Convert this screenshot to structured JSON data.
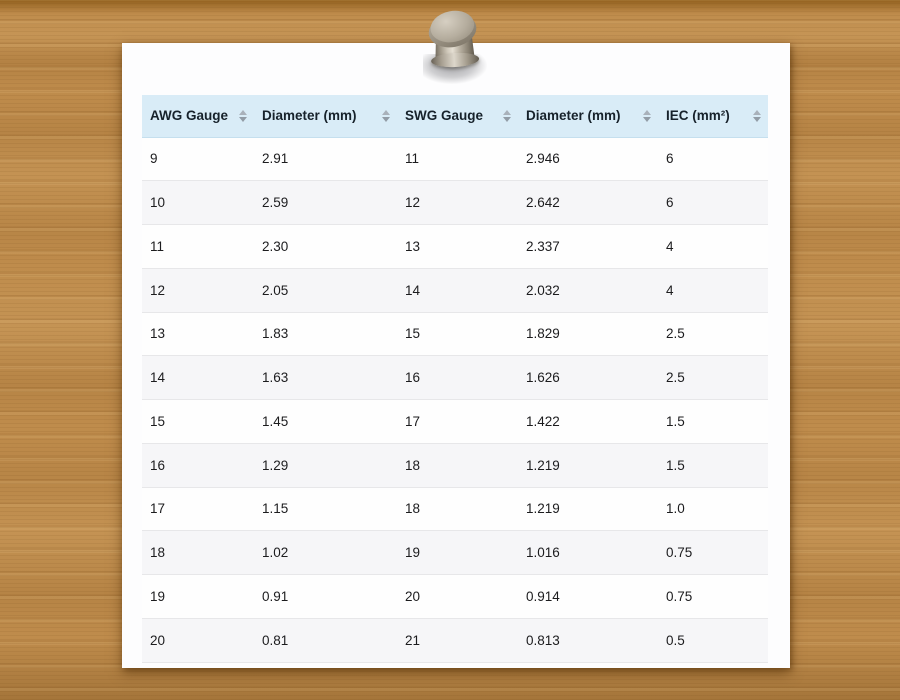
{
  "table": {
    "columns": [
      {
        "id": "awg-gauge",
        "label": "AWG Gauge",
        "sort_icon": "sort-arrows-icon"
      },
      {
        "id": "awg-diameter",
        "label": "Diameter (mm)",
        "sort_icon": "sort-arrows-icon"
      },
      {
        "id": "swg-gauge",
        "label": "SWG Gauge",
        "sort_icon": "sort-arrows-icon"
      },
      {
        "id": "swg-diameter",
        "label": "Diameter (mm)",
        "sort_icon": "sort-arrows-icon"
      },
      {
        "id": "iec-area",
        "label": "IEC (mm²)",
        "sort_icon": "sort-arrows-icon"
      }
    ],
    "rows": [
      [
        "9",
        "2.91",
        "11",
        "2.946",
        "6"
      ],
      [
        "10",
        "2.59",
        "12",
        "2.642",
        "6"
      ],
      [
        "11",
        "2.30",
        "13",
        "2.337",
        "4"
      ],
      [
        "12",
        "2.05",
        "14",
        "2.032",
        "4"
      ],
      [
        "13",
        "1.83",
        "15",
        "1.829",
        "2.5"
      ],
      [
        "14",
        "1.63",
        "16",
        "1.626",
        "2.5"
      ],
      [
        "15",
        "1.45",
        "17",
        "1.422",
        "1.5"
      ],
      [
        "16",
        "1.29",
        "18",
        "1.219",
        "1.5"
      ],
      [
        "17",
        "1.15",
        "18",
        "1.219",
        "1.0"
      ],
      [
        "18",
        "1.02",
        "19",
        "1.016",
        "0.75"
      ],
      [
        "19",
        "0.91",
        "20",
        "0.914",
        "0.75"
      ],
      [
        "20",
        "0.81",
        "21",
        "0.813",
        "0.5"
      ]
    ]
  },
  "icons": {
    "push_pin": "push-pin-icon",
    "sort": "sort-arrows-icon"
  },
  "colors": {
    "header_bg": "#d9ecf7",
    "header_border": "#c5dfee",
    "header_text": "#17222b",
    "row_bg": "#fefefe",
    "row_alt_bg": "#f6f6f8",
    "row_border": "#e7e7e9",
    "cell_text": "#1c1c1e",
    "sort_arrow_up": "#a9b1ba",
    "sort_arrow_down": "#929ca6",
    "paper": "#fdfdfe",
    "wood_base": "#bf8c4c"
  }
}
